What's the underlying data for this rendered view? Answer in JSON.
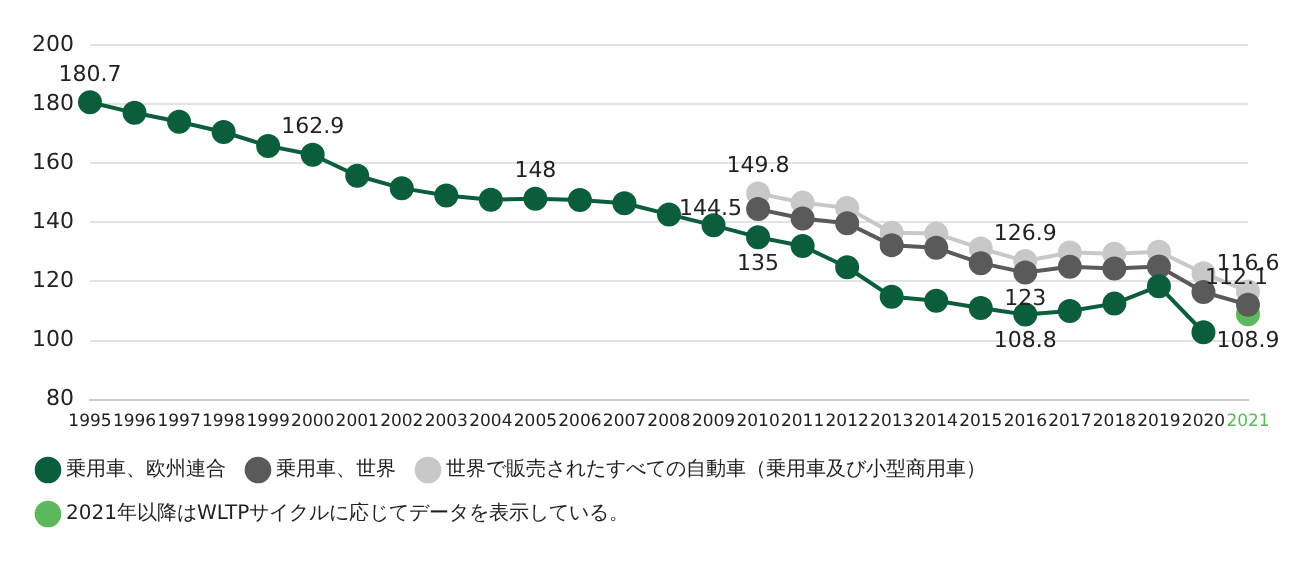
{
  "chart_data": {
    "type": "line",
    "categories": [
      "1995",
      "1996",
      "1997",
      "1998",
      "1999",
      "2000",
      "2001",
      "2002",
      "2003",
      "2004",
      "2005",
      "2006",
      "2007",
      "2008",
      "2009",
      "2010",
      "2011",
      "2012",
      "2013",
      "2014",
      "2015",
      "2016",
      "2017",
      "2018",
      "2019",
      "2020",
      "2021"
    ],
    "series": [
      {
        "name": "乗用車、欧州連合",
        "color": "#0b5e3b",
        "values": [
          180.7,
          177.1,
          174.1,
          170.6,
          165.9,
          162.9,
          155.8,
          151.6,
          149.1,
          147.7,
          148,
          147.6,
          146.5,
          142.7,
          139,
          135,
          132,
          124.8,
          114.8,
          113.5,
          111,
          108.8,
          110,
          112.5,
          118.4,
          102.8,
          null
        ],
        "value_labels": [
          "180.7",
          null,
          null,
          null,
          null,
          "162.9",
          null,
          null,
          null,
          null,
          "148",
          null,
          null,
          null,
          null,
          "135",
          null,
          null,
          null,
          null,
          null,
          "108.8",
          null,
          null,
          null,
          null,
          null
        ]
      },
      {
        "name": "乗用車、世界",
        "color": "#5a5a5a",
        "values": [
          null,
          null,
          null,
          null,
          null,
          null,
          null,
          null,
          null,
          null,
          null,
          null,
          null,
          null,
          null,
          144.5,
          141.3,
          139.7,
          132.3,
          131.4,
          126.2,
          123,
          125,
          124.4,
          125.1,
          116.4,
          112.1
        ],
        "value_labels": [
          null,
          null,
          null,
          null,
          null,
          null,
          null,
          null,
          null,
          null,
          null,
          null,
          null,
          null,
          null,
          "144.5",
          null,
          null,
          null,
          null,
          null,
          "123",
          null,
          null,
          null,
          null,
          "112.1"
        ]
      },
      {
        "name": "世界で販売されたすべての自動車（乗用車及び小型商用車）",
        "color": "#c8c8c8",
        "values": [
          null,
          null,
          null,
          null,
          null,
          null,
          null,
          null,
          null,
          null,
          null,
          null,
          null,
          null,
          null,
          149.8,
          146.7,
          144.9,
          136.5,
          136.2,
          131.2,
          126.9,
          129.8,
          129.4,
          130.1,
          122.8,
          116.6
        ],
        "value_labels": [
          null,
          null,
          null,
          null,
          null,
          null,
          null,
          null,
          null,
          null,
          null,
          null,
          null,
          null,
          null,
          "149.8",
          null,
          null,
          null,
          null,
          null,
          "126.9",
          null,
          null,
          null,
          null,
          "116.6"
        ]
      },
      {
        "name": "2021年以降はWLTPサイクルに応じてデータを表示している。",
        "color": "#5cb85c",
        "values": [
          null,
          null,
          null,
          null,
          null,
          null,
          null,
          null,
          null,
          null,
          null,
          null,
          null,
          null,
          null,
          null,
          null,
          null,
          null,
          null,
          null,
          null,
          null,
          null,
          null,
          null,
          108.9
        ],
        "value_labels": [
          null,
          null,
          null,
          null,
          null,
          null,
          null,
          null,
          null,
          null,
          null,
          null,
          null,
          null,
          null,
          null,
          null,
          null,
          null,
          null,
          null,
          null,
          null,
          null,
          null,
          null,
          "108.9"
        ]
      }
    ],
    "ylim": [
      80,
      200
    ],
    "yticks": [
      80,
      100,
      120,
      140,
      160,
      180,
      200
    ],
    "grid": "y",
    "legend": "bottom",
    "marker": "circle",
    "line_style": "solid"
  }
}
